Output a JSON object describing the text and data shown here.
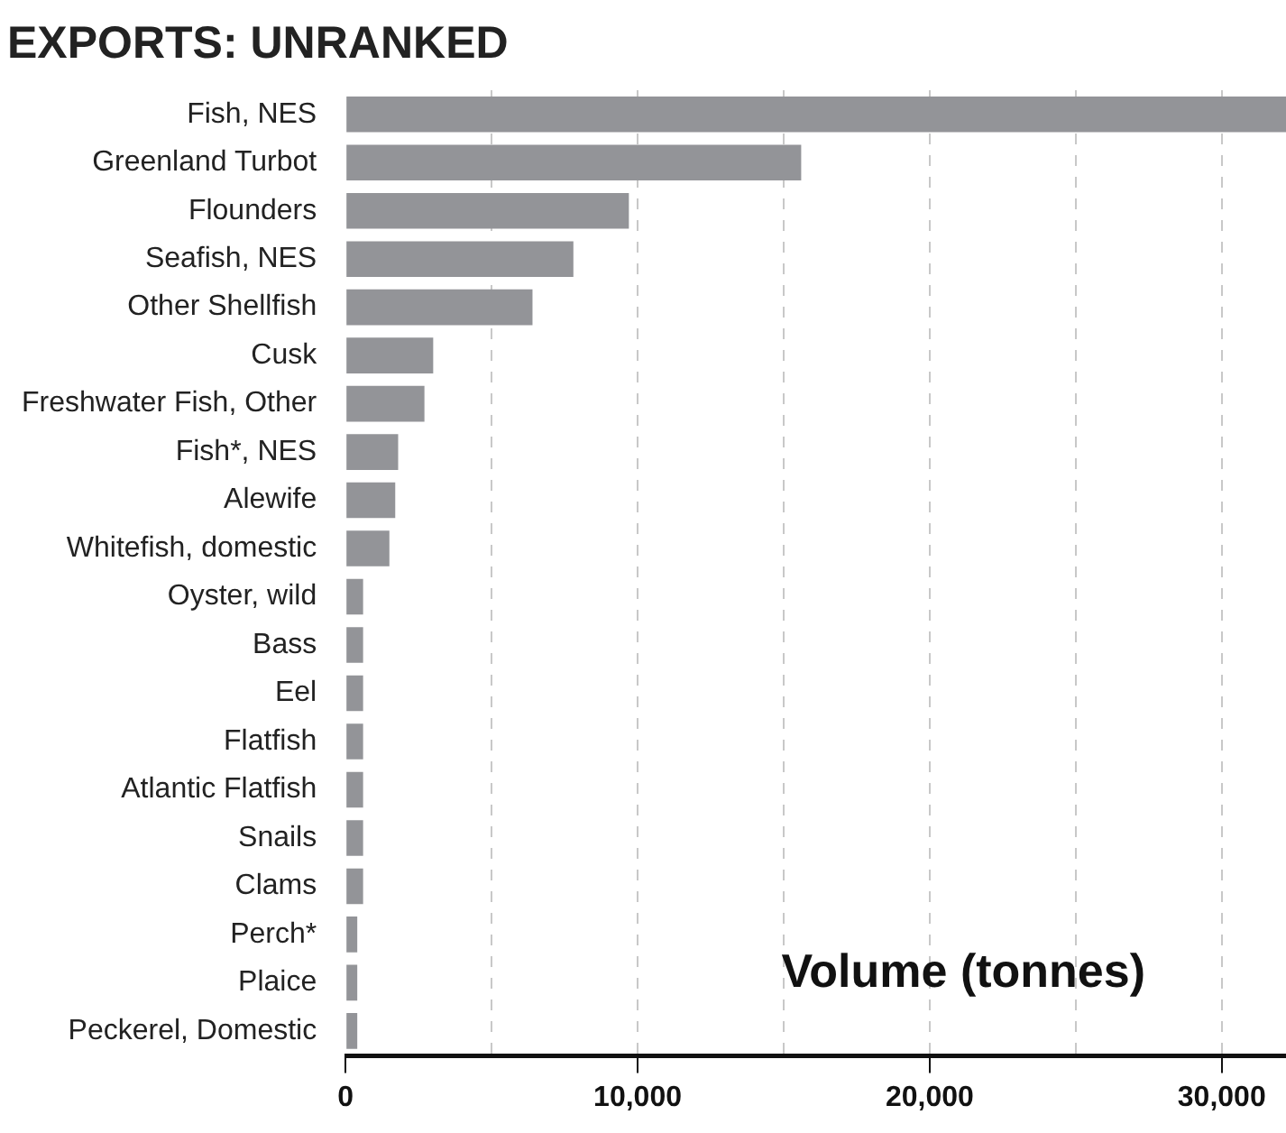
{
  "chart_data": {
    "type": "bar",
    "orientation": "horizontal",
    "title": "EXPORTS: UNRANKED",
    "xlabel": "Volume (tonnes)",
    "categories": [
      "Fish, NES",
      "Greenland Turbot",
      "Flounders",
      "Seafish, NES",
      "Other Shellfish",
      "Cusk",
      "Freshwater Fish, Other",
      "Fish*, NES",
      "Alewife",
      "Whitefish, domestic",
      "Oyster, wild",
      "Bass",
      "Eel",
      "Flatfish",
      "Atlantic Flatfish",
      "Snails",
      "Clams",
      "Perch*",
      "Plaice",
      "Peckerel, Domestic"
    ],
    "values": [
      32200,
      15600,
      9700,
      7800,
      6400,
      3000,
      2700,
      1800,
      1700,
      1500,
      600,
      600,
      600,
      600,
      600,
      600,
      600,
      400,
      400,
      400
    ],
    "color": "#939498",
    "xlim": [
      0,
      32200
    ],
    "xticks": [
      0,
      {
        "value": 5000,
        "label": null
      },
      {
        "value": 10000,
        "label": "10,000"
      },
      {
        "value": 15000,
        "label": null
      },
      {
        "value": 20000,
        "label": "20,000"
      },
      {
        "value": 25000,
        "label": null
      },
      {
        "value": 30000,
        "label": "30,000"
      }
    ],
    "grid": "x",
    "legend": false
  }
}
